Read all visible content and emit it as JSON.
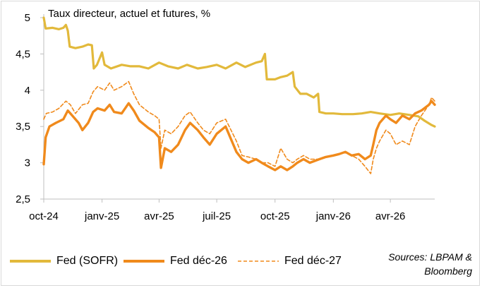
{
  "chart_data": {
    "type": "line",
    "title": "Taux directeur, actuel et futures, %",
    "ylim": [
      2.5,
      5
    ],
    "yticks": [
      "2,5",
      "3",
      "3,5",
      "4",
      "4,5",
      "5"
    ],
    "yticks_values": [
      2.5,
      3,
      3.5,
      4,
      4.5,
      5
    ],
    "xlim": [
      "2024-10-01",
      "2026-06-10"
    ],
    "xticks": [
      {
        "label": "oct-24",
        "date": "2024-10-01"
      },
      {
        "label": "janv-25",
        "date": "2025-01-01"
      },
      {
        "label": "avr-25",
        "date": "2025-04-01"
      },
      {
        "label": "juil-25",
        "date": "2025-07-01"
      },
      {
        "label": "oct-25",
        "date": "2025-10-01"
      },
      {
        "label": "janv-26",
        "date": "2026-01-01"
      },
      {
        "label": "avr-26",
        "date": "2026-04-01"
      }
    ],
    "series": [
      {
        "name": "Fed (SOFR)",
        "color": "#e2b93b",
        "style": "solid",
        "points": [
          [
            "2024-10-01",
            5.0
          ],
          [
            "2024-10-04",
            4.85
          ],
          [
            "2024-10-15",
            4.86
          ],
          [
            "2024-10-25",
            4.84
          ],
          [
            "2024-11-01",
            4.86
          ],
          [
            "2024-11-05",
            4.9
          ],
          [
            "2024-11-08",
            4.82
          ],
          [
            "2024-11-11",
            4.6
          ],
          [
            "2024-11-20",
            4.58
          ],
          [
            "2024-12-01",
            4.6
          ],
          [
            "2024-12-10",
            4.63
          ],
          [
            "2024-12-16",
            4.62
          ],
          [
            "2024-12-19",
            4.3
          ],
          [
            "2024-12-24",
            4.35
          ],
          [
            "2025-01-01",
            4.52
          ],
          [
            "2025-01-05",
            4.35
          ],
          [
            "2025-01-15",
            4.3
          ],
          [
            "2025-02-01",
            4.35
          ],
          [
            "2025-02-15",
            4.33
          ],
          [
            "2025-03-01",
            4.33
          ],
          [
            "2025-03-15",
            4.3
          ],
          [
            "2025-04-01",
            4.38
          ],
          [
            "2025-04-15",
            4.33
          ],
          [
            "2025-05-01",
            4.3
          ],
          [
            "2025-05-15",
            4.35
          ],
          [
            "2025-06-01",
            4.3
          ],
          [
            "2025-06-15",
            4.32
          ],
          [
            "2025-07-01",
            4.35
          ],
          [
            "2025-07-15",
            4.3
          ],
          [
            "2025-08-01",
            4.38
          ],
          [
            "2025-08-15",
            4.32
          ],
          [
            "2025-09-01",
            4.38
          ],
          [
            "2025-09-10",
            4.4
          ],
          [
            "2025-09-15",
            4.5
          ],
          [
            "2025-09-18",
            4.15
          ],
          [
            "2025-10-01",
            4.15
          ],
          [
            "2025-10-10",
            4.18
          ],
          [
            "2025-10-20",
            4.2
          ],
          [
            "2025-10-29",
            4.25
          ],
          [
            "2025-11-01",
            4.05
          ],
          [
            "2025-11-10",
            3.95
          ],
          [
            "2025-11-20",
            3.95
          ],
          [
            "2025-12-01",
            3.9
          ],
          [
            "2025-12-08",
            3.95
          ],
          [
            "2025-12-10",
            3.7
          ],
          [
            "2025-12-20",
            3.68
          ],
          [
            "2026-01-01",
            3.68
          ],
          [
            "2026-01-15",
            3.67
          ],
          [
            "2026-02-01",
            3.67
          ],
          [
            "2026-02-15",
            3.68
          ],
          [
            "2026-03-01",
            3.7
          ],
          [
            "2026-03-15",
            3.68
          ],
          [
            "2026-04-01",
            3.66
          ],
          [
            "2026-04-15",
            3.68
          ],
          [
            "2026-05-01",
            3.66
          ],
          [
            "2026-05-15",
            3.64
          ],
          [
            "2026-05-25",
            3.58
          ],
          [
            "2026-06-05",
            3.52
          ],
          [
            "2026-06-10",
            3.5
          ]
        ]
      },
      {
        "name": "Fed déc-26",
        "color": "#f08a1c",
        "style": "solid",
        "points": [
          [
            "2024-10-01",
            2.98
          ],
          [
            "2024-10-04",
            3.35
          ],
          [
            "2024-10-10",
            3.5
          ],
          [
            "2024-10-20",
            3.55
          ],
          [
            "2024-11-01",
            3.6
          ],
          [
            "2024-11-08",
            3.72
          ],
          [
            "2024-11-15",
            3.65
          ],
          [
            "2024-11-25",
            3.55
          ],
          [
            "2024-12-01",
            3.45
          ],
          [
            "2024-12-10",
            3.55
          ],
          [
            "2024-12-18",
            3.7
          ],
          [
            "2024-12-25",
            3.75
          ],
          [
            "2025-01-05",
            3.72
          ],
          [
            "2025-01-13",
            3.8
          ],
          [
            "2025-01-20",
            3.7
          ],
          [
            "2025-02-01",
            3.68
          ],
          [
            "2025-02-12",
            3.82
          ],
          [
            "2025-02-20",
            3.72
          ],
          [
            "2025-03-01",
            3.58
          ],
          [
            "2025-03-15",
            3.48
          ],
          [
            "2025-03-25",
            3.42
          ],
          [
            "2025-04-01",
            3.35
          ],
          [
            "2025-04-04",
            2.93
          ],
          [
            "2025-04-10",
            3.2
          ],
          [
            "2025-04-20",
            3.15
          ],
          [
            "2025-05-01",
            3.25
          ],
          [
            "2025-05-12",
            3.45
          ],
          [
            "2025-05-20",
            3.55
          ],
          [
            "2025-06-01",
            3.45
          ],
          [
            "2025-06-10",
            3.35
          ],
          [
            "2025-06-20",
            3.25
          ],
          [
            "2025-07-01",
            3.4
          ],
          [
            "2025-07-15",
            3.5
          ],
          [
            "2025-08-01",
            3.15
          ],
          [
            "2025-08-10",
            3.05
          ],
          [
            "2025-08-20",
            3.0
          ],
          [
            "2025-09-01",
            3.05
          ],
          [
            "2025-09-10",
            3.0
          ],
          [
            "2025-09-20",
            2.95
          ],
          [
            "2025-10-01",
            2.9
          ],
          [
            "2025-10-10",
            2.95
          ],
          [
            "2025-10-20",
            2.9
          ],
          [
            "2025-10-29",
            2.95
          ],
          [
            "2025-11-05",
            3.0
          ],
          [
            "2025-11-15",
            3.05
          ],
          [
            "2025-11-25",
            3.0
          ],
          [
            "2025-12-01",
            3.02
          ],
          [
            "2025-12-10",
            3.05
          ],
          [
            "2025-12-20",
            3.08
          ],
          [
            "2026-01-01",
            3.1
          ],
          [
            "2026-01-10",
            3.12
          ],
          [
            "2026-01-20",
            3.15
          ],
          [
            "2026-01-30",
            3.1
          ],
          [
            "2026-02-10",
            3.12
          ],
          [
            "2026-02-20",
            3.05
          ],
          [
            "2026-03-01",
            3.1
          ],
          [
            "2026-03-05",
            3.25
          ],
          [
            "2026-03-10",
            3.45
          ],
          [
            "2026-03-15",
            3.55
          ],
          [
            "2026-03-25",
            3.65
          ],
          [
            "2026-04-01",
            3.6
          ],
          [
            "2026-04-10",
            3.55
          ],
          [
            "2026-04-20",
            3.65
          ],
          [
            "2026-05-01",
            3.6
          ],
          [
            "2026-05-10",
            3.68
          ],
          [
            "2026-05-20",
            3.72
          ],
          [
            "2026-06-01",
            3.8
          ],
          [
            "2026-06-05",
            3.85
          ],
          [
            "2026-06-10",
            3.8
          ]
        ]
      },
      {
        "name": "Fed déc-27",
        "color": "#f08a1c",
        "style": "dashed",
        "points": [
          [
            "2024-10-01",
            3.6
          ],
          [
            "2024-10-05",
            3.68
          ],
          [
            "2024-10-15",
            3.7
          ],
          [
            "2024-10-25",
            3.75
          ],
          [
            "2024-11-05",
            3.85
          ],
          [
            "2024-11-12",
            3.8
          ],
          [
            "2024-11-20",
            3.68
          ],
          [
            "2024-12-01",
            3.8
          ],
          [
            "2024-12-10",
            3.82
          ],
          [
            "2024-12-18",
            3.98
          ],
          [
            "2024-12-25",
            4.05
          ],
          [
            "2025-01-05",
            4.0
          ],
          [
            "2025-01-13",
            4.1
          ],
          [
            "2025-01-20",
            4.0
          ],
          [
            "2025-02-01",
            4.05
          ],
          [
            "2025-02-12",
            4.12
          ],
          [
            "2025-02-20",
            3.95
          ],
          [
            "2025-03-01",
            3.8
          ],
          [
            "2025-03-15",
            3.7
          ],
          [
            "2025-03-25",
            3.65
          ],
          [
            "2025-04-01",
            3.6
          ],
          [
            "2025-04-04",
            3.2
          ],
          [
            "2025-04-10",
            3.45
          ],
          [
            "2025-04-20",
            3.4
          ],
          [
            "2025-05-01",
            3.5
          ],
          [
            "2025-05-12",
            3.65
          ],
          [
            "2025-05-20",
            3.7
          ],
          [
            "2025-06-01",
            3.55
          ],
          [
            "2025-06-10",
            3.45
          ],
          [
            "2025-06-20",
            3.4
          ],
          [
            "2025-07-01",
            3.55
          ],
          [
            "2025-07-15",
            3.6
          ],
          [
            "2025-08-01",
            3.3
          ],
          [
            "2025-08-10",
            3.1
          ],
          [
            "2025-08-20",
            3.08
          ],
          [
            "2025-09-01",
            3.05
          ],
          [
            "2025-09-10",
            3.0
          ],
          [
            "2025-09-20",
            3.0
          ],
          [
            "2025-10-01",
            2.95
          ],
          [
            "2025-10-10",
            3.2
          ],
          [
            "2025-10-20",
            3.05
          ],
          [
            "2025-10-29",
            3.0
          ],
          [
            "2025-11-05",
            3.05
          ],
          [
            "2025-11-15",
            3.1
          ],
          [
            "2025-11-25",
            3.05
          ],
          [
            "2025-12-01",
            3.05
          ],
          [
            "2025-12-10",
            3.05
          ],
          [
            "2025-12-20",
            3.08
          ],
          [
            "2026-01-01",
            3.1
          ],
          [
            "2026-01-10",
            3.12
          ],
          [
            "2026-01-20",
            3.15
          ],
          [
            "2026-01-30",
            3.1
          ],
          [
            "2026-02-10",
            3.05
          ],
          [
            "2026-02-20",
            2.95
          ],
          [
            "2026-03-01",
            2.85
          ],
          [
            "2026-03-05",
            3.05
          ],
          [
            "2026-03-10",
            3.2
          ],
          [
            "2026-03-15",
            3.3
          ],
          [
            "2026-03-25",
            3.45
          ],
          [
            "2026-04-01",
            3.4
          ],
          [
            "2026-04-10",
            3.25
          ],
          [
            "2026-04-20",
            3.3
          ],
          [
            "2026-05-01",
            3.25
          ],
          [
            "2026-05-10",
            3.5
          ],
          [
            "2026-05-20",
            3.65
          ],
          [
            "2026-06-01",
            3.8
          ],
          [
            "2026-06-05",
            3.9
          ],
          [
            "2026-06-10",
            3.85
          ]
        ]
      }
    ]
  },
  "source_note": {
    "line1": "Sources: LBPAM &",
    "line2": "Bloomberg"
  }
}
